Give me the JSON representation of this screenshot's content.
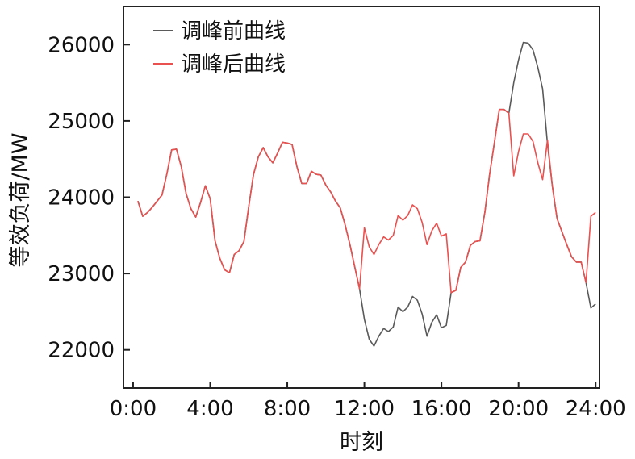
{
  "chart_data": {
    "type": "line",
    "xlabel": "时刻",
    "ylabel": "等效负荷/MW",
    "xlim": [
      -0.5,
      24.2
    ],
    "ylim": [
      21500,
      26500
    ],
    "xticks": [
      0,
      4,
      8,
      12,
      16,
      20,
      24
    ],
    "xtick_labels": [
      "0:00",
      "4:00",
      "8:00",
      "12:00",
      "16:00",
      "20:00",
      "24:00"
    ],
    "yticks": [
      22000,
      23000,
      24000,
      25000,
      26000
    ],
    "ytick_labels": [
      "22000",
      "23000",
      "24000",
      "25000",
      "26000"
    ],
    "grid": false,
    "legend_position": "top-left",
    "series": [
      {
        "name": "调峰前曲线",
        "color": "#5a5a5a",
        "points": [
          [
            0.25,
            23950
          ],
          [
            0.5,
            23750
          ],
          [
            0.75,
            23800
          ],
          [
            1.0,
            23870
          ],
          [
            1.25,
            23950
          ],
          [
            1.5,
            24030
          ],
          [
            1.75,
            24300
          ],
          [
            2.0,
            24620
          ],
          [
            2.25,
            24630
          ],
          [
            2.5,
            24400
          ],
          [
            2.75,
            24050
          ],
          [
            3.0,
            23850
          ],
          [
            3.25,
            23740
          ],
          [
            3.5,
            23930
          ],
          [
            3.75,
            24150
          ],
          [
            4.0,
            23980
          ],
          [
            4.25,
            23430
          ],
          [
            4.5,
            23200
          ],
          [
            4.75,
            23050
          ],
          [
            5.0,
            23010
          ],
          [
            5.25,
            23250
          ],
          [
            5.5,
            23300
          ],
          [
            5.75,
            23420
          ],
          [
            6.0,
            23880
          ],
          [
            6.25,
            24300
          ],
          [
            6.5,
            24530
          ],
          [
            6.75,
            24650
          ],
          [
            7.0,
            24530
          ],
          [
            7.25,
            24450
          ],
          [
            7.5,
            24580
          ],
          [
            7.75,
            24720
          ],
          [
            8.0,
            24710
          ],
          [
            8.25,
            24690
          ],
          [
            8.5,
            24400
          ],
          [
            8.75,
            24180
          ],
          [
            9.0,
            24180
          ],
          [
            9.25,
            24340
          ],
          [
            9.5,
            24300
          ],
          [
            9.75,
            24290
          ],
          [
            10.0,
            24160
          ],
          [
            10.25,
            24070
          ],
          [
            10.5,
            23950
          ],
          [
            10.75,
            23860
          ],
          [
            11.0,
            23640
          ],
          [
            11.25,
            23380
          ],
          [
            11.5,
            23090
          ],
          [
            11.75,
            22800
          ],
          [
            12.0,
            22400
          ],
          [
            12.25,
            22140
          ],
          [
            12.5,
            22050
          ],
          [
            12.75,
            22180
          ],
          [
            13.0,
            22280
          ],
          [
            13.25,
            22240
          ],
          [
            13.5,
            22300
          ],
          [
            13.75,
            22560
          ],
          [
            14.0,
            22500
          ],
          [
            14.25,
            22560
          ],
          [
            14.5,
            22700
          ],
          [
            14.75,
            22650
          ],
          [
            15.0,
            22470
          ],
          [
            15.25,
            22180
          ],
          [
            15.5,
            22360
          ],
          [
            15.75,
            22460
          ],
          [
            16.0,
            22290
          ],
          [
            16.25,
            22320
          ],
          [
            16.5,
            22750
          ],
          [
            16.75,
            22780
          ],
          [
            17.0,
            23080
          ],
          [
            17.25,
            23150
          ],
          [
            17.5,
            23370
          ],
          [
            17.75,
            23420
          ],
          [
            18.0,
            23430
          ],
          [
            18.25,
            23800
          ],
          [
            18.5,
            24300
          ],
          [
            18.75,
            24720
          ],
          [
            19.0,
            25150
          ],
          [
            19.25,
            25150
          ],
          [
            19.5,
            25100
          ],
          [
            19.75,
            25500
          ],
          [
            20.0,
            25800
          ],
          [
            20.25,
            26030
          ],
          [
            20.5,
            26020
          ],
          [
            20.75,
            25930
          ],
          [
            21.0,
            25700
          ],
          [
            21.25,
            25420
          ],
          [
            21.5,
            24700
          ],
          [
            21.75,
            24150
          ],
          [
            22.0,
            23720
          ],
          [
            22.25,
            23550
          ],
          [
            22.5,
            23380
          ],
          [
            22.75,
            23220
          ],
          [
            23.0,
            23150
          ],
          [
            23.25,
            23150
          ],
          [
            23.5,
            22880
          ],
          [
            23.75,
            22550
          ],
          [
            24.0,
            22600
          ]
        ]
      },
      {
        "name": "调峰后曲线",
        "color": "#e8514f",
        "points": [
          [
            0.25,
            23950
          ],
          [
            0.5,
            23750
          ],
          [
            0.75,
            23800
          ],
          [
            1.0,
            23870
          ],
          [
            1.25,
            23950
          ],
          [
            1.5,
            24030
          ],
          [
            1.75,
            24300
          ],
          [
            2.0,
            24620
          ],
          [
            2.25,
            24630
          ],
          [
            2.5,
            24400
          ],
          [
            2.75,
            24050
          ],
          [
            3.0,
            23850
          ],
          [
            3.25,
            23740
          ],
          [
            3.5,
            23930
          ],
          [
            3.75,
            24150
          ],
          [
            4.0,
            23980
          ],
          [
            4.25,
            23430
          ],
          [
            4.5,
            23200
          ],
          [
            4.75,
            23050
          ],
          [
            5.0,
            23010
          ],
          [
            5.25,
            23250
          ],
          [
            5.5,
            23300
          ],
          [
            5.75,
            23420
          ],
          [
            6.0,
            23880
          ],
          [
            6.25,
            24300
          ],
          [
            6.5,
            24530
          ],
          [
            6.75,
            24650
          ],
          [
            7.0,
            24530
          ],
          [
            7.25,
            24450
          ],
          [
            7.5,
            24580
          ],
          [
            7.75,
            24720
          ],
          [
            8.0,
            24710
          ],
          [
            8.25,
            24690
          ],
          [
            8.5,
            24400
          ],
          [
            8.75,
            24180
          ],
          [
            9.0,
            24180
          ],
          [
            9.25,
            24340
          ],
          [
            9.5,
            24300
          ],
          [
            9.75,
            24290
          ],
          [
            10.0,
            24160
          ],
          [
            10.25,
            24070
          ],
          [
            10.5,
            23950
          ],
          [
            10.75,
            23860
          ],
          [
            11.0,
            23640
          ],
          [
            11.25,
            23380
          ],
          [
            11.5,
            23090
          ],
          [
            11.75,
            22800
          ],
          [
            12.0,
            23600
          ],
          [
            12.25,
            23350
          ],
          [
            12.5,
            23250
          ],
          [
            12.75,
            23380
          ],
          [
            13.0,
            23480
          ],
          [
            13.25,
            23440
          ],
          [
            13.5,
            23500
          ],
          [
            13.75,
            23760
          ],
          [
            14.0,
            23700
          ],
          [
            14.25,
            23760
          ],
          [
            14.5,
            23900
          ],
          [
            14.75,
            23850
          ],
          [
            15.0,
            23670
          ],
          [
            15.25,
            23380
          ],
          [
            15.5,
            23560
          ],
          [
            15.75,
            23660
          ],
          [
            16.0,
            23490
          ],
          [
            16.25,
            23520
          ],
          [
            16.5,
            22750
          ],
          [
            16.75,
            22780
          ],
          [
            17.0,
            23080
          ],
          [
            17.25,
            23150
          ],
          [
            17.5,
            23370
          ],
          [
            17.75,
            23420
          ],
          [
            18.0,
            23430
          ],
          [
            18.25,
            23800
          ],
          [
            18.5,
            24300
          ],
          [
            18.75,
            24720
          ],
          [
            19.0,
            25150
          ],
          [
            19.25,
            25150
          ],
          [
            19.5,
            25100
          ],
          [
            19.75,
            24280
          ],
          [
            20.0,
            24600
          ],
          [
            20.25,
            24830
          ],
          [
            20.5,
            24830
          ],
          [
            20.75,
            24730
          ],
          [
            21.0,
            24450
          ],
          [
            21.25,
            24230
          ],
          [
            21.5,
            24750
          ],
          [
            21.75,
            24150
          ],
          [
            22.0,
            23720
          ],
          [
            22.25,
            23550
          ],
          [
            22.5,
            23380
          ],
          [
            22.75,
            23220
          ],
          [
            23.0,
            23150
          ],
          [
            23.25,
            23150
          ],
          [
            23.5,
            22880
          ],
          [
            23.75,
            23750
          ],
          [
            24.0,
            23800
          ]
        ]
      }
    ]
  }
}
